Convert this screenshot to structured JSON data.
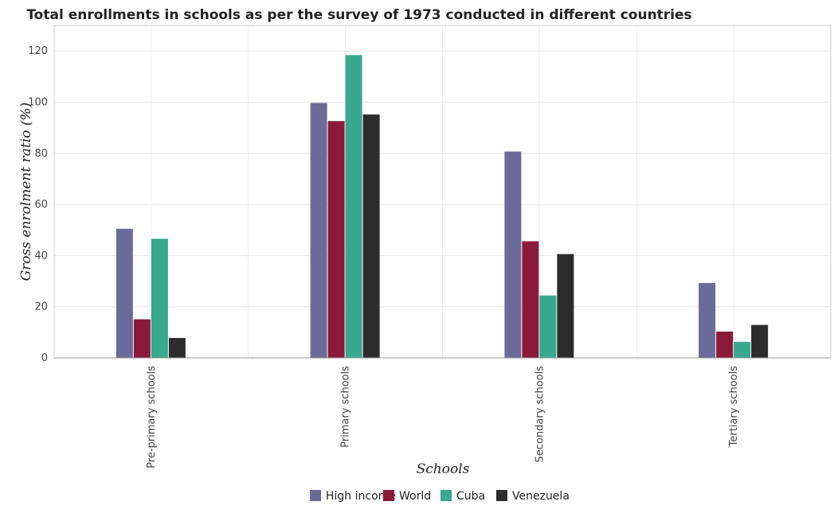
{
  "chart_data": {
    "type": "bar",
    "title": "Total enrollments in schools as per the survey of 1973 conducted in different countries",
    "xlabel": "Schools",
    "ylabel": "Gross enrolment ratio (%)",
    "ylim": [
      0,
      130
    ],
    "yticks": [
      0,
      20,
      40,
      60,
      80,
      100,
      120
    ],
    "grid": true,
    "legend_position": "bottom",
    "categories": [
      "Pre-primary schools",
      "Primary schools",
      "Secondary schools",
      "Tertiary schools"
    ],
    "series": [
      {
        "name": "High income",
        "color": "#6b6b99",
        "values": [
          50.5,
          99.7,
          80.7,
          29.3
        ]
      },
      {
        "name": "World",
        "color": "#8b1a3a",
        "values": [
          15.1,
          92.6,
          45.6,
          10.3
        ]
      },
      {
        "name": "Cuba",
        "color": "#38a88f",
        "values": [
          46.6,
          118.4,
          24.4,
          6.3
        ]
      },
      {
        "name": "Venezuela",
        "color": "#2c2c2c",
        "values": [
          7.8,
          95.2,
          40.6,
          12.9
        ]
      }
    ]
  }
}
